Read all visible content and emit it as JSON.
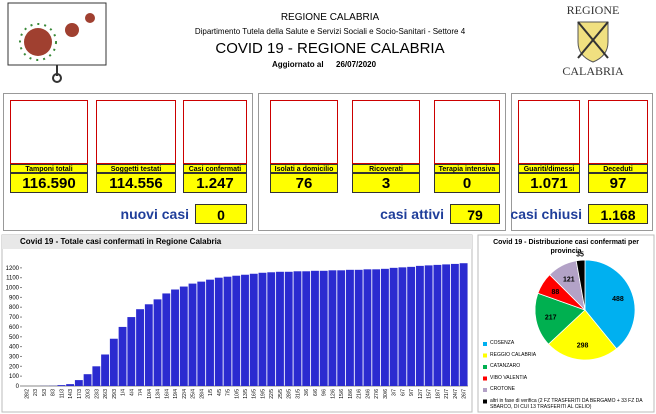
{
  "header": {
    "title": "REGIONE CALABRIA",
    "department": "Dipartimento Tutela della Salute e Servizi Sociali e Socio-Sanitari - Settore 4",
    "subtitle": "COVID 19 - REGIONE CALABRIA",
    "updated_label": "Aggiornato al",
    "updated_date": "26/07/2020"
  },
  "logo": {
    "top": "REGIONE",
    "bottom": "CALABRIA"
  },
  "cards": [
    {
      "label": "Tamponi totali",
      "value": "116.590"
    },
    {
      "label": "Soggetti testati",
      "value": "114.556"
    },
    {
      "label": "Casi confermati",
      "value": "1.247"
    },
    {
      "label": "Isolati a domicilio",
      "value": "76"
    },
    {
      "label": "Ricoverati",
      "value": "3"
    },
    {
      "label": "Terapia intensiva",
      "value": "0"
    },
    {
      "label": "Guariti/dimessi",
      "value": "1.071"
    },
    {
      "label": "Deceduti",
      "value": "97"
    }
  ],
  "summaries": [
    {
      "label": "nuovi casi",
      "value": "0"
    },
    {
      "label": "casi attivi",
      "value": "79"
    },
    {
      "label": "casi chiusi",
      "value": "1.168"
    }
  ],
  "chart_data": [
    {
      "type": "bar",
      "title": "Covid 19 - Totale casi confermati in Regione Calabria",
      "color": "#2b2bd0",
      "categories": [
        "28/2",
        "2/3",
        "5/3",
        "8/3",
        "11/3",
        "14/3",
        "17/3",
        "20/3",
        "23/3",
        "26/3",
        "29/3",
        "1/4",
        "4/4",
        "7/4",
        "10/4",
        "13/4",
        "16/4",
        "19/4",
        "22/4",
        "25/4",
        "28/4",
        "1/5",
        "4/5",
        "7/5",
        "10/5",
        "13/5",
        "16/5",
        "19/5",
        "22/5",
        "25/5",
        "28/5",
        "31/5",
        "3/6",
        "6/6",
        "9/6",
        "12/6",
        "15/6",
        "18/6",
        "21/6",
        "24/6",
        "27/6",
        "30/6",
        "3/7",
        "6/7",
        "9/7",
        "12/7",
        "15/7",
        "18/7",
        "21/7",
        "24/7",
        "26/7"
      ],
      "values": [
        0,
        0,
        1,
        2,
        9,
        19,
        60,
        120,
        200,
        320,
        480,
        600,
        700,
        780,
        830,
        880,
        940,
        980,
        1010,
        1040,
        1060,
        1080,
        1100,
        1110,
        1120,
        1130,
        1140,
        1150,
        1155,
        1160,
        1160,
        1165,
        1165,
        1170,
        1170,
        1175,
        1175,
        1180,
        1180,
        1185,
        1185,
        1190,
        1200,
        1205,
        1210,
        1220,
        1225,
        1230,
        1235,
        1240,
        1247
      ],
      "ylim": [
        0,
        1300
      ],
      "yticks": [
        0,
        100,
        200,
        300,
        400,
        500,
        600,
        700,
        800,
        900,
        1000,
        1100,
        1200
      ]
    },
    {
      "type": "pie",
      "title": "Covid 19 - Distribuzione casi confermati per provincia",
      "categories": [
        "COSENZA",
        "REGGIO CALABRIA",
        "CATANZARO",
        "VIBO VALENTIA",
        "CROTONE",
        "altri in fase di verifica (2 FZ TRASFERITI DA BERGAMO + 33 FZ DA SBARCO, DI CUI 13 TRASFERITI AL CELIO)"
      ],
      "values": [
        488,
        298,
        217,
        88,
        121,
        35
      ],
      "colors": [
        "#00b0f0",
        "#ffff00",
        "#00b050",
        "#ff0000",
        "#b3a2c7",
        "#000000"
      ]
    }
  ]
}
